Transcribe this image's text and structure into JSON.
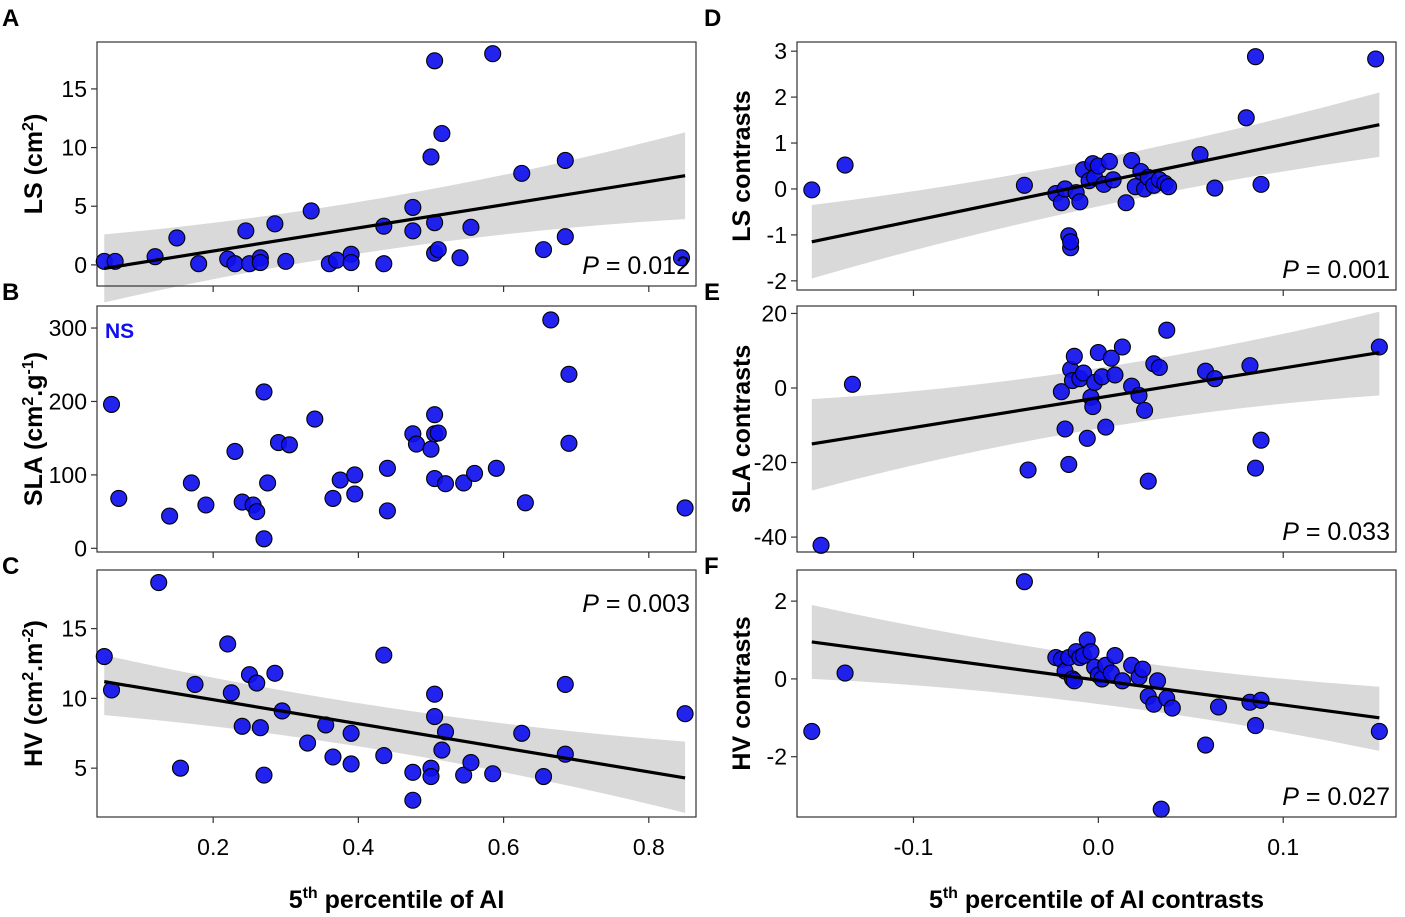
{
  "figure": {
    "point_color": "#1010ee",
    "band_color": "#d9d9d9",
    "line_color": "#000000"
  },
  "chart_data": [
    {
      "panel": "A",
      "type": "scatter",
      "ylabel_main": "LS (cm",
      "ylabel_sup": "2",
      "ylabel_tail": ")",
      "xlim": [
        0.04,
        0.865
      ],
      "ylim": [
        -1.8,
        19
      ],
      "xticks": [
        0.2,
        0.4,
        0.6,
        0.8
      ],
      "xtick_labels": [],
      "yticks": [
        0,
        5,
        10,
        15
      ],
      "ytick_labels": [
        "0",
        "5",
        "10",
        "15"
      ],
      "fit": {
        "x": [
          0.05,
          0.85
        ],
        "y": [
          -0.3,
          7.6
        ],
        "band_lo": [
          -3.2,
          3.9
        ],
        "band_hi": [
          2.6,
          11.3
        ]
      },
      "p_text": {
        "label": "P",
        "value": " = 0.012",
        "pos": "bottom-right"
      },
      "points": [
        [
          0.05,
          0.3
        ],
        [
          0.065,
          0.3
        ],
        [
          0.12,
          0.7
        ],
        [
          0.15,
          2.3
        ],
        [
          0.18,
          0.1
        ],
        [
          0.22,
          0.5
        ],
        [
          0.23,
          0.1
        ],
        [
          0.245,
          2.9
        ],
        [
          0.25,
          0.1
        ],
        [
          0.265,
          0.6
        ],
        [
          0.265,
          0.2
        ],
        [
          0.285,
          3.5
        ],
        [
          0.3,
          0.3
        ],
        [
          0.335,
          4.6
        ],
        [
          0.36,
          0.1
        ],
        [
          0.37,
          0.4
        ],
        [
          0.39,
          0.9
        ],
        [
          0.39,
          0.2
        ],
        [
          0.435,
          3.3
        ],
        [
          0.435,
          0.1
        ],
        [
          0.475,
          4.9
        ],
        [
          0.475,
          2.9
        ],
        [
          0.5,
          9.2
        ],
        [
          0.505,
          17.4
        ],
        [
          0.505,
          3.6
        ],
        [
          0.505,
          1.0
        ],
        [
          0.51,
          1.3
        ],
        [
          0.515,
          11.2
        ],
        [
          0.54,
          0.6
        ],
        [
          0.555,
          3.2
        ],
        [
          0.585,
          18.0
        ],
        [
          0.625,
          7.8
        ],
        [
          0.655,
          1.3
        ],
        [
          0.685,
          8.9
        ],
        [
          0.685,
          2.4
        ],
        [
          0.845,
          0.6
        ]
      ]
    },
    {
      "panel": "B",
      "type": "scatter",
      "ylabel_main": "SLA (cm",
      "ylabel_sup": "2",
      "ylabel_tail": ".g",
      "ylabel_sup2": "-1",
      "ylabel_tail2": ")",
      "xlim": [
        0.04,
        0.865
      ],
      "ylim": [
        -5,
        330
      ],
      "xticks": [
        0.2,
        0.4,
        0.6,
        0.8
      ],
      "xtick_labels": [],
      "yticks": [
        0,
        100,
        200,
        300
      ],
      "ytick_labels": [
        "0",
        "100",
        "200",
        "300"
      ],
      "ns_label": "NS",
      "points": [
        [
          0.06,
          196
        ],
        [
          0.07,
          68
        ],
        [
          0.14,
          44
        ],
        [
          0.17,
          89
        ],
        [
          0.19,
          59
        ],
        [
          0.23,
          132
        ],
        [
          0.24,
          63
        ],
        [
          0.255,
          59
        ],
        [
          0.26,
          50
        ],
        [
          0.27,
          13
        ],
        [
          0.27,
          213
        ],
        [
          0.275,
          89
        ],
        [
          0.29,
          144
        ],
        [
          0.305,
          141
        ],
        [
          0.34,
          176
        ],
        [
          0.365,
          68
        ],
        [
          0.375,
          93
        ],
        [
          0.395,
          100
        ],
        [
          0.395,
          74
        ],
        [
          0.44,
          109
        ],
        [
          0.44,
          51
        ],
        [
          0.475,
          156
        ],
        [
          0.48,
          142
        ],
        [
          0.5,
          135
        ],
        [
          0.505,
          95
        ],
        [
          0.505,
          182
        ],
        [
          0.505,
          156
        ],
        [
          0.51,
          157
        ],
        [
          0.52,
          88
        ],
        [
          0.545,
          89
        ],
        [
          0.56,
          102
        ],
        [
          0.59,
          109
        ],
        [
          0.63,
          62
        ],
        [
          0.665,
          311
        ],
        [
          0.69,
          237
        ],
        [
          0.69,
          143
        ],
        [
          0.85,
          55
        ]
      ]
    },
    {
      "panel": "C",
      "type": "scatter",
      "ylabel_main": "HV (cm",
      "ylabel_sup": "2",
      "ylabel_tail": ".m",
      "ylabel_sup2": "-2",
      "ylabel_tail2": ")",
      "xlim": [
        0.04,
        0.865
      ],
      "ylim": [
        1.5,
        19.2
      ],
      "xticks": [
        0.2,
        0.4,
        0.6,
        0.8
      ],
      "xtick_labels": [
        "0.2",
        "0.4",
        "0.6",
        "0.8"
      ],
      "yticks": [
        5,
        10,
        15
      ],
      "ytick_labels": [
        "5",
        "10",
        "15"
      ],
      "xlabel_main": "5",
      "xlabel_sup": "th",
      "xlabel_tail": " percentile of AI",
      "fit": {
        "x": [
          0.05,
          0.85
        ],
        "y": [
          11.2,
          4.3
        ],
        "band_lo": [
          8.8,
          1.8
        ],
        "band_hi": [
          13.1,
          6.9
        ]
      },
      "p_text": {
        "label": "P",
        "value": " = 0.003",
        "pos": "top-right"
      },
      "points": [
        [
          0.05,
          13.0
        ],
        [
          0.06,
          10.6
        ],
        [
          0.125,
          18.3
        ],
        [
          0.155,
          5.0
        ],
        [
          0.175,
          11.0
        ],
        [
          0.22,
          13.9
        ],
        [
          0.225,
          10.4
        ],
        [
          0.24,
          8.0
        ],
        [
          0.25,
          11.7
        ],
        [
          0.26,
          11.1
        ],
        [
          0.265,
          7.9
        ],
        [
          0.27,
          4.5
        ],
        [
          0.285,
          11.8
        ],
        [
          0.295,
          9.1
        ],
        [
          0.33,
          6.8
        ],
        [
          0.355,
          8.1
        ],
        [
          0.365,
          5.8
        ],
        [
          0.39,
          7.5
        ],
        [
          0.39,
          5.3
        ],
        [
          0.435,
          13.1
        ],
        [
          0.435,
          5.9
        ],
        [
          0.475,
          4.7
        ],
        [
          0.475,
          2.7
        ],
        [
          0.5,
          5.0
        ],
        [
          0.5,
          4.4
        ],
        [
          0.505,
          10.3
        ],
        [
          0.505,
          8.7
        ],
        [
          0.515,
          6.3
        ],
        [
          0.52,
          7.6
        ],
        [
          0.545,
          4.5
        ],
        [
          0.555,
          5.4
        ],
        [
          0.585,
          4.6
        ],
        [
          0.625,
          7.5
        ],
        [
          0.655,
          4.4
        ],
        [
          0.685,
          11.0
        ],
        [
          0.685,
          6.0
        ],
        [
          0.85,
          8.9
        ]
      ]
    },
    {
      "panel": "D",
      "type": "scatter",
      "ylabel_main": "LS contrasts",
      "xlim": [
        -0.163,
        0.161
      ],
      "ylim": [
        -2.2,
        3.2
      ],
      "xticks": [
        -0.1,
        0.0,
        0.1
      ],
      "xtick_labels": [],
      "yticks": [
        -2,
        -1,
        0,
        1,
        2,
        3
      ],
      "ytick_labels": [
        "-2",
        "-1",
        "0",
        "1",
        "2",
        "3"
      ],
      "fit": {
        "x": [
          -0.155,
          0.152
        ],
        "y": [
          -1.15,
          1.4
        ],
        "band_lo": [
          -1.95,
          0.7
        ],
        "band_hi": [
          -0.35,
          2.1
        ]
      },
      "p_text": {
        "label": "P",
        "value": " = 0.001",
        "pos": "bottom-right"
      },
      "points": [
        [
          -0.155,
          -0.02
        ],
        [
          -0.137,
          0.52
        ],
        [
          -0.04,
          0.08
        ],
        [
          -0.023,
          -0.1
        ],
        [
          -0.02,
          -0.3
        ],
        [
          -0.018,
          0.0
        ],
        [
          -0.016,
          -1.02
        ],
        [
          -0.015,
          -1.28
        ],
        [
          -0.015,
          -1.15
        ],
        [
          -0.012,
          -0.08
        ],
        [
          -0.01,
          -0.28
        ],
        [
          -0.008,
          0.42
        ],
        [
          -0.005,
          0.18
        ],
        [
          -0.003,
          0.55
        ],
        [
          -0.002,
          0.25
        ],
        [
          0.0,
          0.5
        ],
        [
          0.003,
          0.1
        ],
        [
          0.006,
          0.6
        ],
        [
          0.008,
          0.2
        ],
        [
          0.015,
          -0.3
        ],
        [
          0.018,
          0.62
        ],
        [
          0.02,
          0.05
        ],
        [
          0.023,
          0.38
        ],
        [
          0.025,
          0.0
        ],
        [
          0.027,
          0.25
        ],
        [
          0.03,
          0.08
        ],
        [
          0.033,
          0.2
        ],
        [
          0.036,
          0.12
        ],
        [
          0.038,
          0.05
        ],
        [
          0.055,
          0.75
        ],
        [
          0.063,
          0.02
        ],
        [
          0.08,
          1.55
        ],
        [
          0.085,
          2.88
        ],
        [
          0.088,
          0.1
        ],
        [
          0.15,
          2.83
        ]
      ]
    },
    {
      "panel": "E",
      "type": "scatter",
      "ylabel_main": "SLA contrasts",
      "xlim": [
        -0.163,
        0.161
      ],
      "ylim": [
        -44,
        22
      ],
      "xticks": [
        -0.1,
        0.0,
        0.1
      ],
      "xtick_labels": [],
      "yticks": [
        -40,
        -20,
        0,
        20
      ],
      "ytick_labels": [
        "-40",
        "-20",
        "0",
        "20"
      ],
      "fit": {
        "x": [
          -0.155,
          0.152
        ],
        "y": [
          -15.0,
          9.5
        ],
        "band_lo": [
          -27.5,
          -2.0
        ],
        "band_hi": [
          -3.0,
          20.5
        ]
      },
      "p_text": {
        "label": "P",
        "value": " = 0.033",
        "pos": "bottom-right"
      },
      "points": [
        [
          -0.15,
          -42.2
        ],
        [
          -0.133,
          1.0
        ],
        [
          -0.038,
          -22.0
        ],
        [
          -0.02,
          -1.0
        ],
        [
          -0.018,
          -11.0
        ],
        [
          -0.016,
          -20.5
        ],
        [
          -0.015,
          5.0
        ],
        [
          -0.014,
          2.0
        ],
        [
          -0.013,
          8.5
        ],
        [
          -0.01,
          2.5
        ],
        [
          -0.008,
          4.0
        ],
        [
          -0.006,
          -13.5
        ],
        [
          -0.004,
          -2.5
        ],
        [
          -0.003,
          -5.0
        ],
        [
          -0.002,
          1.5
        ],
        [
          0.0,
          9.5
        ],
        [
          0.002,
          3.0
        ],
        [
          0.004,
          -10.5
        ],
        [
          0.007,
          8.0
        ],
        [
          0.009,
          3.5
        ],
        [
          0.013,
          11.0
        ],
        [
          0.018,
          0.5
        ],
        [
          0.022,
          -2.0
        ],
        [
          0.025,
          -6.0
        ],
        [
          0.027,
          -25.0
        ],
        [
          0.03,
          6.5
        ],
        [
          0.033,
          5.5
        ],
        [
          0.037,
          15.5
        ],
        [
          0.058,
          4.5
        ],
        [
          0.063,
          2.5
        ],
        [
          0.082,
          6.0
        ],
        [
          0.085,
          -21.5
        ],
        [
          0.088,
          -14.0
        ],
        [
          0.152,
          11.0
        ]
      ]
    },
    {
      "panel": "F",
      "type": "scatter",
      "ylabel_main": "HV contrasts",
      "xlim": [
        -0.163,
        0.161
      ],
      "ylim": [
        -3.55,
        2.8
      ],
      "xticks": [
        -0.1,
        0.0,
        0.1
      ],
      "xtick_labels": [
        "-0.1",
        "0.0",
        "0.1"
      ],
      "yticks": [
        -2,
        0,
        2
      ],
      "ytick_labels": [
        "-2",
        "0",
        "2"
      ],
      "xlabel_main": "5",
      "xlabel_sup": "th",
      "xlabel_tail": " percentile of AI contrasts",
      "fit": {
        "x": [
          -0.155,
          0.152
        ],
        "y": [
          0.95,
          -1.0
        ],
        "band_lo": [
          0.0,
          -1.85
        ],
        "band_hi": [
          1.9,
          -0.2
        ]
      },
      "p_text": {
        "label": "P",
        "value": " = 0.027",
        "pos": "bottom-right"
      },
      "points": [
        [
          -0.155,
          -1.35
        ],
        [
          -0.137,
          0.15
        ],
        [
          -0.04,
          2.5
        ],
        [
          -0.023,
          0.55
        ],
        [
          -0.02,
          0.5
        ],
        [
          -0.018,
          0.2
        ],
        [
          -0.016,
          0.55
        ],
        [
          -0.014,
          0.0
        ],
        [
          -0.013,
          -0.05
        ],
        [
          -0.012,
          0.7
        ],
        [
          -0.01,
          0.55
        ],
        [
          -0.008,
          0.6
        ],
        [
          -0.006,
          1.0
        ],
        [
          -0.004,
          0.7
        ],
        [
          -0.002,
          0.3
        ],
        [
          0.0,
          0.1
        ],
        [
          0.002,
          0.0
        ],
        [
          0.004,
          0.35
        ],
        [
          0.007,
          0.15
        ],
        [
          0.009,
          0.6
        ],
        [
          0.013,
          -0.05
        ],
        [
          0.018,
          0.35
        ],
        [
          0.022,
          0.05
        ],
        [
          0.024,
          0.25
        ],
        [
          0.027,
          -0.45
        ],
        [
          0.03,
          -0.65
        ],
        [
          0.032,
          -0.05
        ],
        [
          0.034,
          -3.35
        ],
        [
          0.037,
          -0.5
        ],
        [
          0.04,
          -0.75
        ],
        [
          0.058,
          -1.7
        ],
        [
          0.065,
          -0.72
        ],
        [
          0.082,
          -0.6
        ],
        [
          0.085,
          -1.2
        ],
        [
          0.088,
          -0.55
        ],
        [
          0.152,
          -1.35
        ]
      ]
    }
  ]
}
